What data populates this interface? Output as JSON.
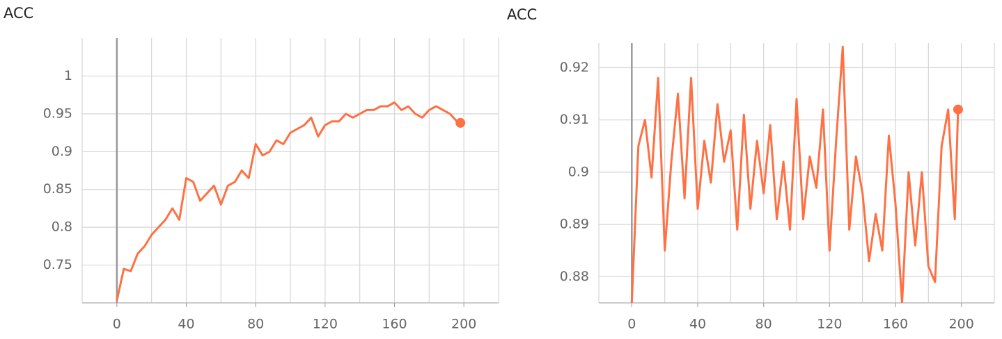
{
  "chart_data": [
    {
      "type": "line",
      "title": "ACC",
      "color": "#ff7043",
      "x": [
        0,
        4,
        8,
        12,
        16,
        20,
        24,
        28,
        32,
        36,
        40,
        44,
        48,
        52,
        56,
        60,
        64,
        68,
        72,
        76,
        80,
        84,
        88,
        92,
        96,
        100,
        104,
        108,
        112,
        116,
        120,
        124,
        128,
        132,
        136,
        140,
        144,
        148,
        152,
        156,
        160,
        164,
        168,
        172,
        176,
        180,
        184,
        188,
        192,
        196,
        198
      ],
      "values": [
        0.703,
        0.745,
        0.742,
        0.765,
        0.775,
        0.79,
        0.8,
        0.81,
        0.825,
        0.81,
        0.865,
        0.86,
        0.835,
        0.845,
        0.855,
        0.83,
        0.855,
        0.86,
        0.875,
        0.865,
        0.91,
        0.895,
        0.9,
        0.915,
        0.91,
        0.925,
        0.93,
        0.935,
        0.945,
        0.92,
        0.935,
        0.94,
        0.94,
        0.95,
        0.945,
        0.95,
        0.955,
        0.955,
        0.96,
        0.96,
        0.965,
        0.955,
        0.96,
        0.95,
        0.945,
        0.955,
        0.96,
        0.955,
        0.95,
        0.94,
        0.938
      ],
      "xlim": [
        -20,
        220
      ],
      "xticks": [
        0,
        40,
        80,
        120,
        160,
        200
      ],
      "xgrid": [
        -20,
        0,
        20,
        40,
        60,
        80,
        100,
        120,
        140,
        160,
        180,
        200,
        220
      ],
      "ylim": [
        0.7,
        1.05
      ],
      "yticks": [
        0.75,
        0.8,
        0.85,
        0.9,
        0.95,
        1
      ],
      "grid": true
    },
    {
      "type": "line",
      "title": "ACC",
      "color": "#ff7043",
      "x": [
        0,
        4,
        8,
        12,
        16,
        20,
        24,
        28,
        32,
        36,
        40,
        44,
        48,
        52,
        56,
        60,
        64,
        68,
        72,
        76,
        80,
        84,
        88,
        92,
        96,
        100,
        104,
        108,
        112,
        116,
        120,
        124,
        128,
        132,
        136,
        140,
        144,
        148,
        152,
        156,
        160,
        164,
        168,
        172,
        176,
        180,
        184,
        188,
        192,
        196,
        198
      ],
      "values": [
        0.875,
        0.905,
        0.91,
        0.899,
        0.918,
        0.885,
        0.902,
        0.915,
        0.895,
        0.918,
        0.893,
        0.906,
        0.898,
        0.913,
        0.902,
        0.908,
        0.889,
        0.911,
        0.893,
        0.906,
        0.896,
        0.909,
        0.891,
        0.902,
        0.889,
        0.914,
        0.891,
        0.903,
        0.897,
        0.912,
        0.885,
        0.906,
        0.924,
        0.889,
        0.903,
        0.896,
        0.883,
        0.892,
        0.885,
        0.907,
        0.894,
        0.875,
        0.9,
        0.886,
        0.9,
        0.882,
        0.879,
        0.905,
        0.912,
        0.891,
        0.912
      ],
      "xlim": [
        -20,
        220
      ],
      "xticks": [
        0,
        40,
        80,
        120,
        160,
        200
      ],
      "xgrid": [
        -20,
        0,
        20,
        40,
        60,
        80,
        100,
        120,
        140,
        160,
        180,
        200,
        220
      ],
      "ylim": [
        0.875,
        0.9247
      ],
      "yticks": [
        0.88,
        0.89,
        0.9,
        0.91,
        0.92
      ],
      "grid": true
    }
  ]
}
